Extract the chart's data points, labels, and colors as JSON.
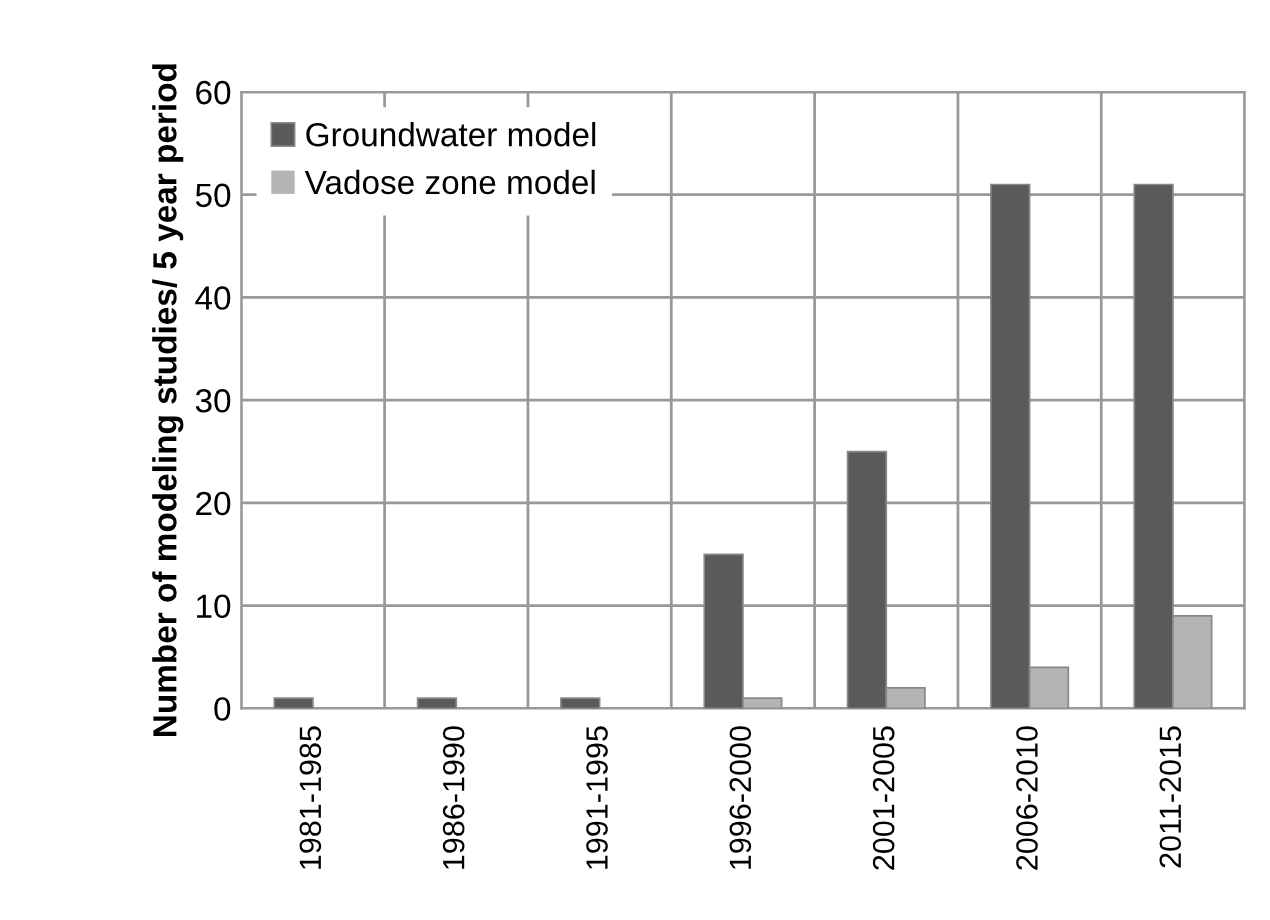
{
  "chart_data": {
    "type": "bar",
    "ylabel": "Number of modeling studies/ 5 year period",
    "categories": [
      "1981-1985",
      "1986-1990",
      "1991-1995",
      "1996-2000",
      "2001-2005",
      "2006-2010",
      "2011-2015"
    ],
    "series": [
      {
        "name": "Groundwater model",
        "color": "#5a5a5a",
        "values": [
          1,
          1,
          1,
          15,
          25,
          51,
          51
        ]
      },
      {
        "name": "Vadose zone model",
        "color": "#b4b4b4",
        "values": [
          0,
          0,
          0,
          1,
          2,
          4,
          9
        ]
      }
    ],
    "ylim": [
      0,
      60
    ],
    "yticks": [
      0,
      10,
      20,
      30,
      40,
      50,
      60
    ],
    "grid": true,
    "legend": "top left"
  }
}
